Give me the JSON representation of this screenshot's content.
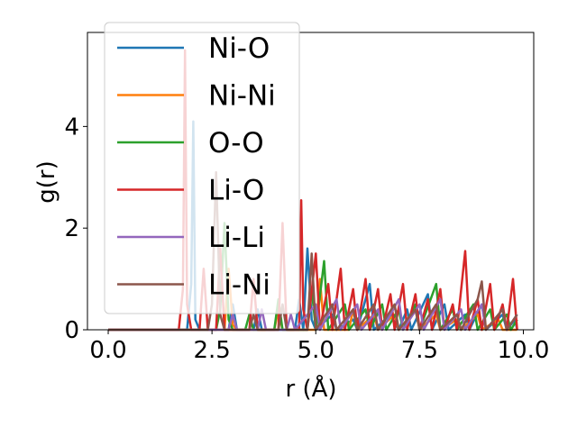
{
  "chart_data": {
    "type": "line",
    "title": "",
    "xlabel": "r (Å)",
    "ylabel": "g(r)",
    "xlim": [
      -0.5,
      10.25
    ],
    "ylim": [
      0,
      5.85
    ],
    "xticks": [
      0.0,
      2.5,
      5.0,
      7.5,
      10.0
    ],
    "xtick_labels": [
      "0.0",
      "2.5",
      "5.0",
      "7.5",
      "10.0"
    ],
    "yticks": [
      0,
      2,
      4
    ],
    "ytick_labels": [
      "0",
      "2",
      "4"
    ],
    "grid": false,
    "legend_position": "top-left",
    "series": [
      {
        "name": "Ni-O",
        "color": "#1f77b4",
        "points": [
          [
            0.0,
            0
          ],
          [
            1.9,
            0
          ],
          [
            2.0,
            0.9
          ],
          [
            2.05,
            4.1
          ],
          [
            2.1,
            0.2
          ],
          [
            2.2,
            0
          ],
          [
            2.9,
            0
          ],
          [
            3.0,
            0.5
          ],
          [
            3.1,
            0
          ],
          [
            3.5,
            0
          ],
          [
            3.6,
            0.4
          ],
          [
            3.7,
            0
          ],
          [
            4.5,
            0
          ],
          [
            4.6,
            0.6
          ],
          [
            4.7,
            0
          ],
          [
            4.8,
            1.6
          ],
          [
            4.9,
            0.2
          ],
          [
            5.0,
            0
          ],
          [
            5.4,
            0.3
          ],
          [
            5.5,
            0
          ],
          [
            5.9,
            0.2
          ],
          [
            6.0,
            0
          ],
          [
            6.3,
            0.9
          ],
          [
            6.4,
            0
          ],
          [
            6.8,
            0.3
          ],
          [
            7.0,
            0
          ],
          [
            7.2,
            0.4
          ],
          [
            7.3,
            0
          ],
          [
            7.7,
            0.7
          ],
          [
            7.8,
            0
          ],
          [
            8.1,
            0.5
          ],
          [
            8.2,
            0
          ],
          [
            8.6,
            0.3
          ],
          [
            8.7,
            0
          ],
          [
            9.0,
            0.5
          ],
          [
            9.1,
            0
          ],
          [
            9.5,
            0.3
          ],
          [
            9.6,
            0
          ],
          [
            9.8,
            0.2
          ],
          [
            9.85,
            0
          ]
        ]
      },
      {
        "name": "Ni-Ni",
        "color": "#ff7f0e",
        "points": [
          [
            0.0,
            0
          ],
          [
            2.8,
            0
          ],
          [
            2.9,
            1.2
          ],
          [
            3.0,
            0.1
          ],
          [
            3.1,
            0
          ],
          [
            4.0,
            0
          ],
          [
            4.1,
            0.4
          ],
          [
            4.2,
            0
          ],
          [
            5.0,
            0
          ],
          [
            5.1,
            1.0
          ],
          [
            5.2,
            0
          ],
          [
            5.8,
            0
          ],
          [
            5.9,
            0.4
          ],
          [
            6.0,
            0
          ],
          [
            6.4,
            0.3
          ],
          [
            6.5,
            0
          ],
          [
            6.9,
            0.3
          ],
          [
            7.0,
            0
          ],
          [
            7.4,
            0.4
          ],
          [
            7.5,
            0
          ],
          [
            7.9,
            0.3
          ],
          [
            8.0,
            0
          ],
          [
            8.4,
            0.2
          ],
          [
            8.5,
            0
          ],
          [
            8.9,
            0.3
          ],
          [
            9.0,
            0
          ],
          [
            9.4,
            0.2
          ],
          [
            9.5,
            0
          ],
          [
            9.85,
            0
          ]
        ]
      },
      {
        "name": "O-O",
        "color": "#2ca02c",
        "points": [
          [
            0.0,
            0
          ],
          [
            2.6,
            0
          ],
          [
            2.7,
            0.4
          ],
          [
            2.8,
            2.1
          ],
          [
            2.9,
            0.2
          ],
          [
            3.0,
            0
          ],
          [
            3.3,
            0
          ],
          [
            3.4,
            0.3
          ],
          [
            3.5,
            0
          ],
          [
            4.0,
            0
          ],
          [
            4.1,
            0.6
          ],
          [
            4.2,
            0
          ],
          [
            4.8,
            0
          ],
          [
            4.9,
            0.8
          ],
          [
            5.0,
            0
          ],
          [
            5.2,
            1.35
          ],
          [
            5.3,
            0
          ],
          [
            5.7,
            0.5
          ],
          [
            5.8,
            0
          ],
          [
            6.2,
            0.4
          ],
          [
            6.3,
            0
          ],
          [
            6.6,
            0.5
          ],
          [
            6.7,
            0
          ],
          [
            7.0,
            0.4
          ],
          [
            7.1,
            0
          ],
          [
            7.4,
            0.5
          ],
          [
            7.5,
            0
          ],
          [
            7.9,
            0.9
          ],
          [
            8.0,
            0
          ],
          [
            8.3,
            0.4
          ],
          [
            8.4,
            0
          ],
          [
            8.8,
            0.5
          ],
          [
            8.9,
            0
          ],
          [
            9.2,
            0.4
          ],
          [
            9.3,
            0
          ],
          [
            9.6,
            0.3
          ],
          [
            9.7,
            0
          ],
          [
            9.85,
            0.2
          ]
        ]
      },
      {
        "name": "Li-O",
        "color": "#d62728",
        "points": [
          [
            0.0,
            0
          ],
          [
            1.7,
            0
          ],
          [
            1.8,
            0.8
          ],
          [
            1.85,
            5.5
          ],
          [
            1.9,
            0.5
          ],
          [
            2.0,
            0
          ],
          [
            2.2,
            0
          ],
          [
            2.3,
            1.2
          ],
          [
            2.4,
            0
          ],
          [
            2.6,
            0
          ],
          [
            2.7,
            1.6
          ],
          [
            2.8,
            0
          ],
          [
            3.4,
            0
          ],
          [
            3.5,
            1.0
          ],
          [
            3.6,
            0
          ],
          [
            4.1,
            0
          ],
          [
            4.2,
            2.1
          ],
          [
            4.3,
            0
          ],
          [
            4.6,
            0
          ],
          [
            4.65,
            2.55
          ],
          [
            4.7,
            0.4
          ],
          [
            4.8,
            0
          ],
          [
            5.0,
            1.5
          ],
          [
            5.1,
            0
          ],
          [
            5.3,
            0.9
          ],
          [
            5.4,
            0
          ],
          [
            5.6,
            1.2
          ],
          [
            5.7,
            0
          ],
          [
            5.9,
            0.8
          ],
          [
            6.0,
            0
          ],
          [
            6.2,
            1.0
          ],
          [
            6.3,
            0
          ],
          [
            6.5,
            0.8
          ],
          [
            6.6,
            0
          ],
          [
            6.8,
            0.7
          ],
          [
            6.9,
            0
          ],
          [
            7.1,
            0.9
          ],
          [
            7.2,
            0
          ],
          [
            7.4,
            0.7
          ],
          [
            7.5,
            0
          ],
          [
            7.7,
            0.6
          ],
          [
            7.8,
            0
          ],
          [
            8.0,
            0.8
          ],
          [
            8.1,
            0
          ],
          [
            8.3,
            0.5
          ],
          [
            8.4,
            0
          ],
          [
            8.6,
            1.55
          ],
          [
            8.7,
            0
          ],
          [
            8.9,
            0.6
          ],
          [
            9.0,
            0
          ],
          [
            9.2,
            0.9
          ],
          [
            9.3,
            0
          ],
          [
            9.5,
            0.5
          ],
          [
            9.6,
            0
          ],
          [
            9.75,
            1.0
          ],
          [
            9.85,
            0
          ]
        ]
      },
      {
        "name": "Li-Li",
        "color": "#9467bd",
        "points": [
          [
            0.0,
            0
          ],
          [
            2.9,
            0
          ],
          [
            3.0,
            0.3
          ],
          [
            3.1,
            0
          ],
          [
            3.6,
            0
          ],
          [
            3.7,
            0.4
          ],
          [
            3.8,
            0
          ],
          [
            4.3,
            0
          ],
          [
            4.4,
            0.3
          ],
          [
            4.5,
            0
          ],
          [
            5.0,
            0.5
          ],
          [
            5.1,
            0
          ],
          [
            5.5,
            0.6
          ],
          [
            5.6,
            0
          ],
          [
            6.0,
            0.5
          ],
          [
            6.1,
            0
          ],
          [
            6.5,
            0.4
          ],
          [
            6.6,
            0
          ],
          [
            7.0,
            0.6
          ],
          [
            7.1,
            0
          ],
          [
            7.5,
            0.5
          ],
          [
            7.6,
            0
          ],
          [
            8.0,
            0.6
          ],
          [
            8.1,
            0
          ],
          [
            8.5,
            0.4
          ],
          [
            8.6,
            0
          ],
          [
            9.0,
            0.5
          ],
          [
            9.1,
            0
          ],
          [
            9.5,
            0.4
          ],
          [
            9.6,
            0
          ],
          [
            9.85,
            0.3
          ]
        ]
      },
      {
        "name": "Li-Ni",
        "color": "#8c564b",
        "points": [
          [
            0.0,
            0
          ],
          [
            2.4,
            0
          ],
          [
            2.5,
            0.5
          ],
          [
            2.6,
            3.1
          ],
          [
            2.7,
            0.3
          ],
          [
            2.8,
            0
          ],
          [
            3.4,
            0
          ],
          [
            3.5,
            0.3
          ],
          [
            3.6,
            0
          ],
          [
            4.1,
            0
          ],
          [
            4.2,
            0.5
          ],
          [
            4.3,
            0
          ],
          [
            4.8,
            0
          ],
          [
            4.9,
            1.5
          ],
          [
            5.0,
            0
          ],
          [
            5.4,
            0.5
          ],
          [
            5.5,
            0
          ],
          [
            5.9,
            0.4
          ],
          [
            6.0,
            0
          ],
          [
            6.4,
            0.5
          ],
          [
            6.5,
            0
          ],
          [
            6.9,
            0.5
          ],
          [
            7.0,
            0
          ],
          [
            7.4,
            0.4
          ],
          [
            7.5,
            0
          ],
          [
            7.9,
            0.5
          ],
          [
            8.0,
            0
          ],
          [
            8.4,
            0.3
          ],
          [
            8.5,
            0
          ],
          [
            8.9,
            0.6
          ],
          [
            9.0,
            0.95
          ],
          [
            9.1,
            0
          ],
          [
            9.5,
            0.4
          ],
          [
            9.6,
            0
          ],
          [
            9.85,
            0.3
          ]
        ]
      }
    ]
  }
}
